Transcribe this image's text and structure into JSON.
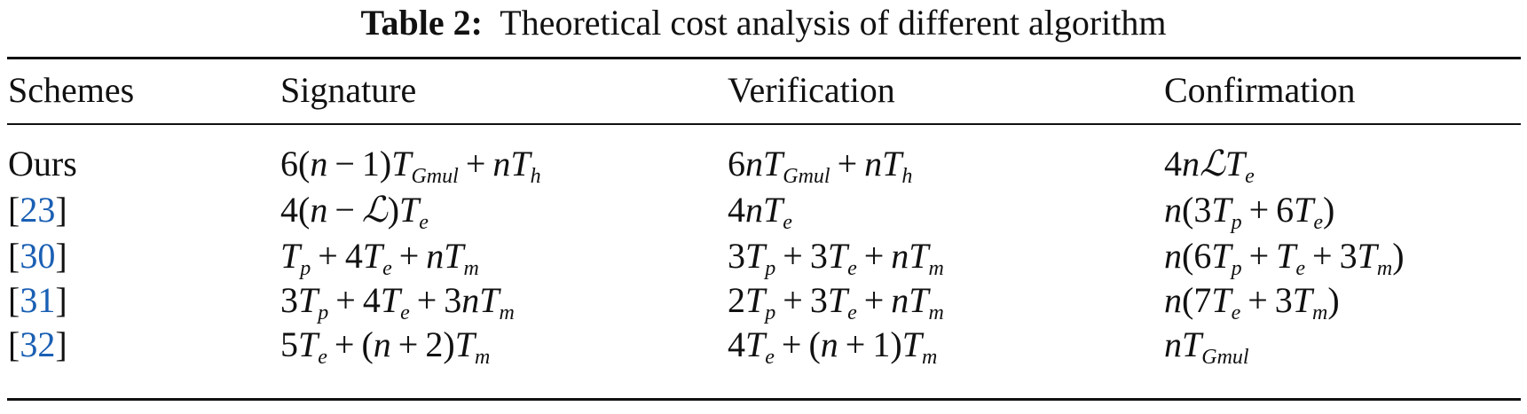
{
  "caption": {
    "label": "Table 2:",
    "text": "Theoretical cost analysis of different algorithm"
  },
  "table": {
    "headers": [
      "Schemes",
      "Signature",
      "Verification",
      "Confirmation"
    ],
    "rows": [
      {
        "scheme": "Ours",
        "is_ref": false,
        "signature": "6(n − 1)T_{Gmul} + nT_{h}",
        "verification": "6nT_{Gmul} + nT_{h}",
        "confirmation": "4nℒT_{e}"
      },
      {
        "scheme": "23",
        "is_ref": true,
        "signature": "4(n − ℒ)T_{e}",
        "verification": "4nT_{e}",
        "confirmation": "n(3T_{p} + 6T_{e})"
      },
      {
        "scheme": "30",
        "is_ref": true,
        "signature": "T_{p} + 4T_{e} + nT_{m}",
        "verification": "3T_{p} + 3T_{e} + nT_{m}",
        "confirmation": "n(6T_{p} + T_{e} + 3T_{m})"
      },
      {
        "scheme": "31",
        "is_ref": true,
        "signature": "3T_{p} + 4T_{e} + 3nT_{m}",
        "verification": "2T_{p} + 3T_{e} + nT_{m}",
        "confirmation": "n(7T_{e} + 3T_{m})"
      },
      {
        "scheme": "32",
        "is_ref": true,
        "signature": "5T_{e} + (n + 2)T_{m}",
        "verification": "4T_{e} + (n + 1)T_{m}",
        "confirmation": "nT_{Gmul}"
      }
    ]
  },
  "colors": {
    "link": "#1a5fb4",
    "text": "#111111"
  }
}
